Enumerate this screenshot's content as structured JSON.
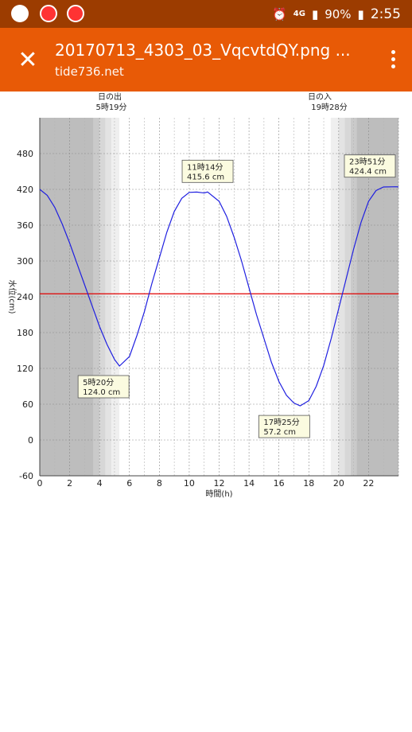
{
  "status_bar": {
    "battery": "90%",
    "time": "2:55",
    "network": "4G",
    "icons": [
      "trend-micro-icon",
      "search-app-icon",
      "sync-app-icon",
      "alarm-icon",
      "signal-icon",
      "battery-icon"
    ]
  },
  "app_bar": {
    "title": "20170713_4303_03_VqcvtdQY.png ...",
    "subtitle": "tide736.net",
    "close_icon": "close-icon",
    "menu_icon": "more-vert-icon",
    "color": "#e85a06"
  },
  "chart_data": {
    "type": "line",
    "xlabel": "時間(h)",
    "ylabel": "水位(cm)",
    "xlim": [
      0,
      24
    ],
    "ylim": [
      -60,
      540
    ],
    "x_ticks": [
      "0",
      "2",
      "4",
      "6",
      "8",
      "10",
      "12",
      "14",
      "16",
      "18",
      "20",
      "22"
    ],
    "y_ticks": [
      "-60",
      "0",
      "60",
      "120",
      "180",
      "240",
      "300",
      "360",
      "420",
      "480"
    ],
    "grid": true,
    "sunrise_label": "日の出",
    "sunrise_time": "5時19分",
    "sunset_label": "日の入",
    "sunset_time": "19時28分",
    "reference_line": 245,
    "reference_color": "#e00000",
    "line_color": "#1f1fe0",
    "series": [
      {
        "x": [
          0,
          0.5,
          1,
          1.5,
          2,
          2.5,
          3,
          3.5,
          4,
          4.5,
          5,
          5.33,
          6,
          6.5,
          7,
          7.5,
          8,
          8.5,
          9,
          9.5,
          10,
          10.5,
          11,
          11.23,
          12,
          12.5,
          13,
          13.5,
          14,
          14.5,
          15,
          15.5,
          16,
          16.5,
          17,
          17.42,
          18,
          18.5,
          19,
          19.5,
          20,
          20.5,
          21,
          21.5,
          22,
          22.5,
          23,
          23.85,
          24
        ],
        "values": [
          420,
          410,
          390,
          362,
          330,
          295,
          260,
          225,
          190,
          160,
          135,
          124,
          140,
          175,
          215,
          262,
          305,
          348,
          383,
          405,
          415,
          415.5,
          414,
          415.6,
          400,
          375,
          340,
          300,
          255,
          210,
          170,
          130,
          98,
          75,
          62,
          57.2,
          66,
          90,
          125,
          170,
          220,
          270,
          320,
          365,
          400,
          418,
          424,
          424.4,
          424
        ]
      }
    ],
    "annotations": [
      {
        "x": 5.33,
        "y": 124.0,
        "time": "5時20分",
        "value": "124.0 cm",
        "placement": "below"
      },
      {
        "x": 11.23,
        "y": 415.6,
        "time": "11時14分",
        "value": "415.6 cm",
        "placement": "above"
      },
      {
        "x": 17.42,
        "y": 57.2,
        "time": "17時25分",
        "value": "57.2 cm",
        "placement": "below"
      },
      {
        "x": 23.85,
        "y": 424.4,
        "time": "23時51分",
        "value": "424.4 cm",
        "placement": "above"
      }
    ]
  }
}
